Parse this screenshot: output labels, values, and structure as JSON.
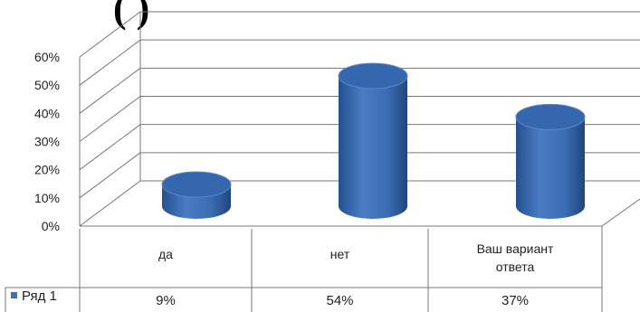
{
  "title_fragment": "(                  )",
  "chart_data": {
    "type": "bar",
    "style": "3d-cylinder",
    "categories": [
      "да",
      "нет",
      "Ваш вариант ответа"
    ],
    "category_lines": [
      [
        "да"
      ],
      [
        "нет"
      ],
      [
        "Ваш вариант",
        "ответа"
      ]
    ],
    "series": [
      {
        "name": "Ряд 1",
        "values": [
          9,
          54,
          37
        ],
        "labels": [
          "9%",
          "54%",
          "37%"
        ],
        "color": "#3f6fb5"
      }
    ],
    "yticks": [
      "0%",
      "10%",
      "20%",
      "30%",
      "40%",
      "50%",
      "60%"
    ],
    "ylim": [
      0,
      60
    ],
    "grid": true,
    "legend": "data-table",
    "data_table": true
  }
}
